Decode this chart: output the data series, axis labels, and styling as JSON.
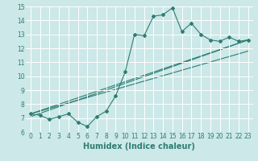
{
  "title": "",
  "xlabel": "Humidex (Indice chaleur)",
  "ylabel": "",
  "bg_color": "#cce8e8",
  "grid_color": "#ffffff",
  "line_color": "#2e7d72",
  "xlim": [
    -0.5,
    23.5
  ],
  "ylim": [
    6,
    15
  ],
  "xticks": [
    0,
    1,
    2,
    3,
    4,
    5,
    6,
    7,
    8,
    9,
    10,
    11,
    12,
    13,
    14,
    15,
    16,
    17,
    18,
    19,
    20,
    21,
    22,
    23
  ],
  "yticks": [
    6,
    7,
    8,
    9,
    10,
    11,
    12,
    13,
    14,
    15
  ],
  "main_x": [
    0,
    1,
    2,
    3,
    4,
    5,
    6,
    7,
    8,
    9,
    10,
    11,
    12,
    13,
    14,
    15,
    16,
    17,
    18,
    19,
    20,
    21,
    22,
    23
  ],
  "main_y": [
    7.3,
    7.2,
    6.9,
    7.1,
    7.3,
    6.7,
    6.4,
    7.1,
    7.5,
    8.6,
    10.3,
    13.0,
    12.9,
    14.3,
    14.4,
    14.9,
    13.2,
    13.8,
    13.0,
    12.6,
    12.5,
    12.8,
    12.5,
    12.6
  ],
  "trend1_x": [
    0,
    23
  ],
  "trend1_y": [
    7.3,
    11.8
  ],
  "trend2_x": [
    0,
    23
  ],
  "trend2_y": [
    7.3,
    12.6
  ],
  "trend3_x": [
    0,
    23
  ],
  "trend3_y": [
    7.1,
    12.6
  ],
  "font_color": "#2e7d72",
  "tick_fontsize": 5.5,
  "label_fontsize": 7.0
}
